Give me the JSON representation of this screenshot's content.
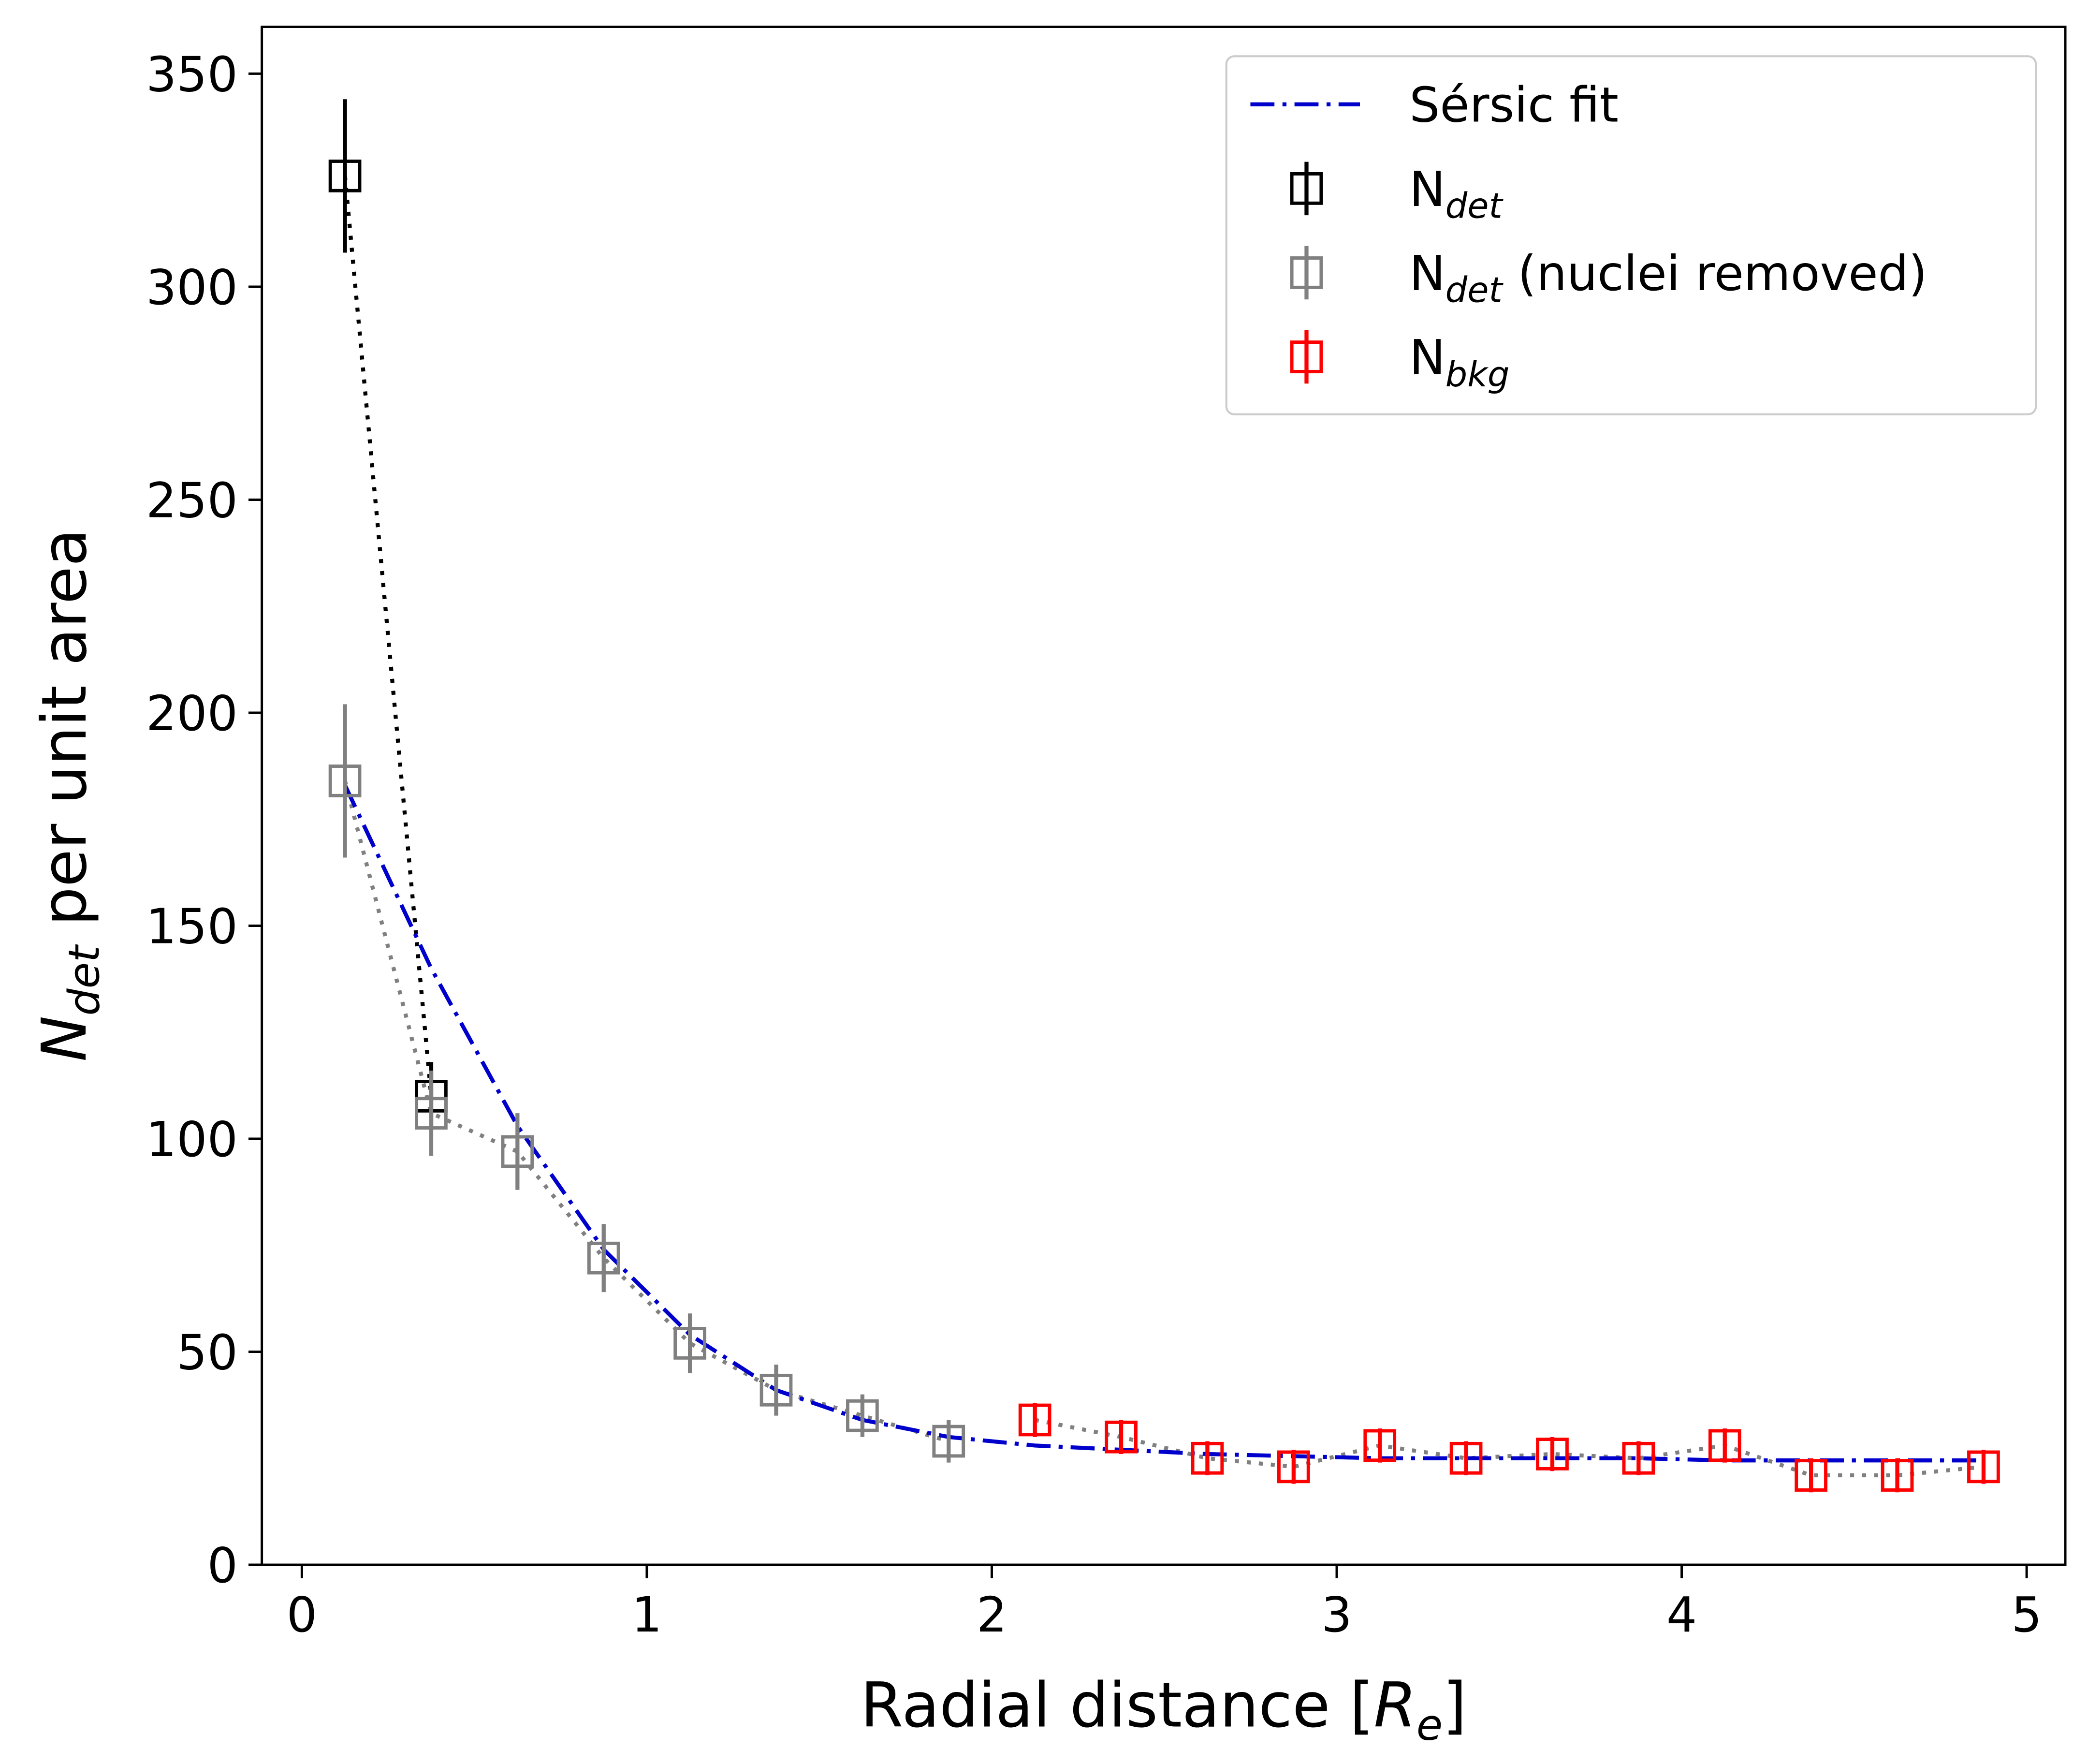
{
  "chart_data": {
    "type": "errorbar",
    "xlabel_parts": [
      "Radial distance [",
      "R",
      "e",
      "]"
    ],
    "ylabel_parts": [
      "N",
      "det",
      " per unit area"
    ],
    "xlim": [
      -0.116,
      5.112
    ],
    "ylim": [
      0,
      361
    ],
    "xticks": [
      0,
      1,
      2,
      3,
      4,
      5
    ],
    "yticks": [
      0,
      50,
      100,
      150,
      200,
      250,
      300,
      350
    ],
    "legend": "upper right",
    "fit": {
      "name": "Sérsic fit",
      "color": "#0000cc",
      "style": "dashdot",
      "x": [
        0.125,
        0.375,
        0.625,
        0.875,
        1.125,
        1.375,
        1.625,
        1.875,
        2.125,
        2.375,
        2.625,
        2.875,
        3.125,
        3.375,
        3.625,
        3.875,
        4.125,
        4.375,
        4.625,
        4.875
      ],
      "values": [
        183,
        140,
        103,
        74,
        54,
        41,
        34,
        30,
        28,
        27,
        26,
        25.5,
        25,
        25,
        25,
        25,
        24.5,
        24.5,
        24.5,
        24.5
      ]
    },
    "series": [
      {
        "name": "N",
        "name_sub": "det",
        "color": "#000000",
        "line_color": "#000000",
        "x": [
          0.125,
          0.375
        ],
        "values": [
          326,
          110
        ],
        "errors": [
          18,
          8
        ]
      },
      {
        "name": "N",
        "name_sub": "det",
        "name_suffix": " (nuclei removed)",
        "color": "#808080",
        "line_color": "#808080",
        "x": [
          0.125,
          0.375,
          0.625,
          0.875,
          1.125,
          1.375,
          1.625,
          1.875
        ],
        "values": [
          184,
          106,
          97,
          72,
          52,
          41,
          35,
          29
        ],
        "errors": [
          18,
          10,
          9,
          8,
          7,
          6,
          5,
          5
        ]
      },
      {
        "name": "N",
        "name_sub": "bkg",
        "color": "#ff0000",
        "line_color": "#808080",
        "x": [
          2.125,
          2.375,
          2.625,
          2.875,
          3.125,
          3.375,
          3.625,
          3.875,
          4.125,
          4.375,
          4.625,
          4.875
        ],
        "values": [
          34,
          30,
          25,
          23,
          28,
          25,
          26,
          25,
          28,
          21,
          21,
          23
        ],
        "errors": [
          4,
          4,
          4,
          4,
          4,
          4,
          4,
          4,
          4,
          4,
          4,
          4
        ]
      }
    ]
  }
}
